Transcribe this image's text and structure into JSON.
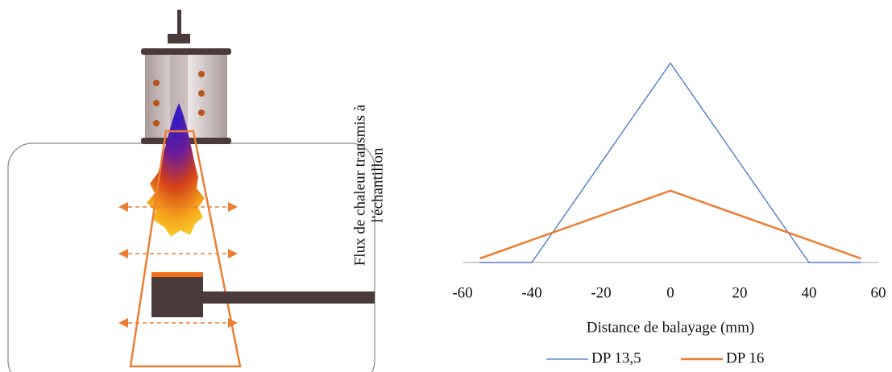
{
  "chart_data": {
    "type": "line",
    "y_label": [
      "Flux de chaleur transmis à",
      "l'échantillon"
    ],
    "x_label": "Distance de balayage (mm)",
    "series": [
      {
        "name": "DP 13,5",
        "color": "#4472c4",
        "x": [
          -55,
          -40,
          0,
          40,
          55
        ],
        "values": [
          0,
          0,
          1,
          0,
          0
        ]
      },
      {
        "name": "DP 16",
        "color": "#ed7d31",
        "x": [
          -55,
          0,
          55
        ],
        "values": [
          0.02,
          0.36,
          0.02
        ]
      }
    ],
    "xlim": [
      -60,
      60
    ],
    "xticks": [
      -60,
      -40,
      -20,
      0,
      20,
      40,
      60
    ],
    "ylim": [
      0,
      1.07
    ],
    "legend": "bottom"
  }
}
